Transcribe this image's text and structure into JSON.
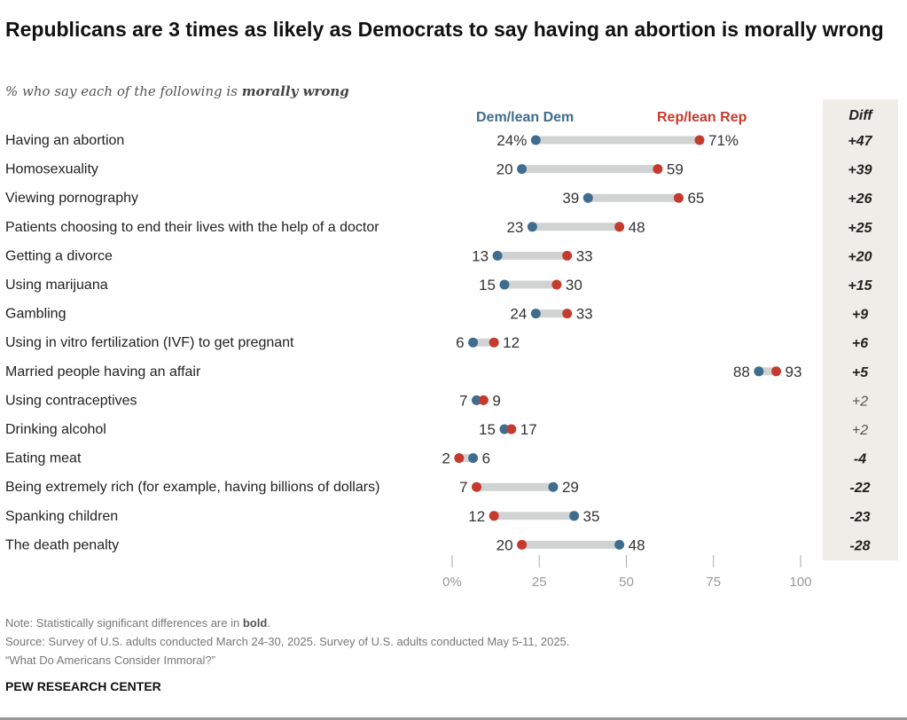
{
  "title": "Republicans are 3 times as likely as Democrats to say having an abortion is morally wrong",
  "subtitle_prefix": "% who say each of the following is ",
  "subtitle_bold": "morally wrong",
  "colors": {
    "dem": "#3f6d8f",
    "rep": "#c53a2e",
    "bar": "#d1d3d3",
    "diff_bg": "#efede7"
  },
  "chart_data": {
    "type": "dumbbell",
    "xlim": [
      0,
      100
    ],
    "xticks": [
      "0%",
      "25",
      "50",
      "75",
      "100"
    ],
    "xtick_values": [
      0,
      25,
      50,
      75,
      100
    ],
    "legend": {
      "dem": "Dem/lean Dem",
      "rep": "Rep/lean Rep"
    },
    "diff_header": "Diff",
    "rows": [
      {
        "label": "Having an abortion",
        "dem": 24,
        "rep": 71,
        "dem_label": "24%",
        "rep_label": "71%",
        "diff": "+47",
        "significant": true
      },
      {
        "label": "Homosexuality",
        "dem": 20,
        "rep": 59,
        "dem_label": "20",
        "rep_label": "59",
        "diff": "+39",
        "significant": true
      },
      {
        "label": "Viewing pornography",
        "dem": 39,
        "rep": 65,
        "dem_label": "39",
        "rep_label": "65",
        "diff": "+26",
        "significant": true
      },
      {
        "label": "Patients choosing to end their lives with the help of a doctor",
        "dem": 23,
        "rep": 48,
        "dem_label": "23",
        "rep_label": "48",
        "diff": "+25",
        "significant": true
      },
      {
        "label": "Getting a divorce",
        "dem": 13,
        "rep": 33,
        "dem_label": "13",
        "rep_label": "33",
        "diff": "+20",
        "significant": true
      },
      {
        "label": "Using marijuana",
        "dem": 15,
        "rep": 30,
        "dem_label": "15",
        "rep_label": "30",
        "diff": "+15",
        "significant": true
      },
      {
        "label": "Gambling",
        "dem": 24,
        "rep": 33,
        "dem_label": "24",
        "rep_label": "33",
        "diff": "+9",
        "significant": true
      },
      {
        "label": "Using in vitro fertilization (IVF) to get pregnant",
        "dem": 6,
        "rep": 12,
        "dem_label": "6",
        "rep_label": "12",
        "diff": "+6",
        "significant": true
      },
      {
        "label": "Married people having an affair",
        "dem": 88,
        "rep": 93,
        "dem_label": "88",
        "rep_label": "93",
        "diff": "+5",
        "significant": true
      },
      {
        "label": "Using contraceptives",
        "dem": 7,
        "rep": 9,
        "dem_label": "7",
        "rep_label": "9",
        "diff": "+2",
        "significant": false
      },
      {
        "label": "Drinking alcohol",
        "dem": 15,
        "rep": 17,
        "dem_label": "15",
        "rep_label": "17",
        "diff": "+2",
        "significant": false
      },
      {
        "label": "Eating meat",
        "dem": 6,
        "rep": 2,
        "dem_label": "6",
        "rep_label": "2",
        "diff": "-4",
        "significant": true
      },
      {
        "label": "Being extremely rich (for example, having billions of dollars)",
        "dem": 29,
        "rep": 7,
        "dem_label": "29",
        "rep_label": "7",
        "diff": "-22",
        "significant": true
      },
      {
        "label": "Spanking children",
        "dem": 35,
        "rep": 12,
        "dem_label": "35",
        "rep_label": "12",
        "diff": "-23",
        "significant": true
      },
      {
        "label": "The death penalty",
        "dem": 48,
        "rep": 20,
        "dem_label": "48",
        "rep_label": "20",
        "diff": "-28",
        "significant": true
      }
    ]
  },
  "notes": {
    "note_prefix": "Note: Statistically significant differences are in ",
    "note_bold": "bold",
    "note_suffix": ".",
    "source": "Source: Survey of U.S. adults conducted March 24-30, 2025. Survey of U.S. adults conducted May 5-11, 2025.",
    "report": "“What Do Americans Consider Immoral?”",
    "brand": "PEW RESEARCH CENTER"
  }
}
